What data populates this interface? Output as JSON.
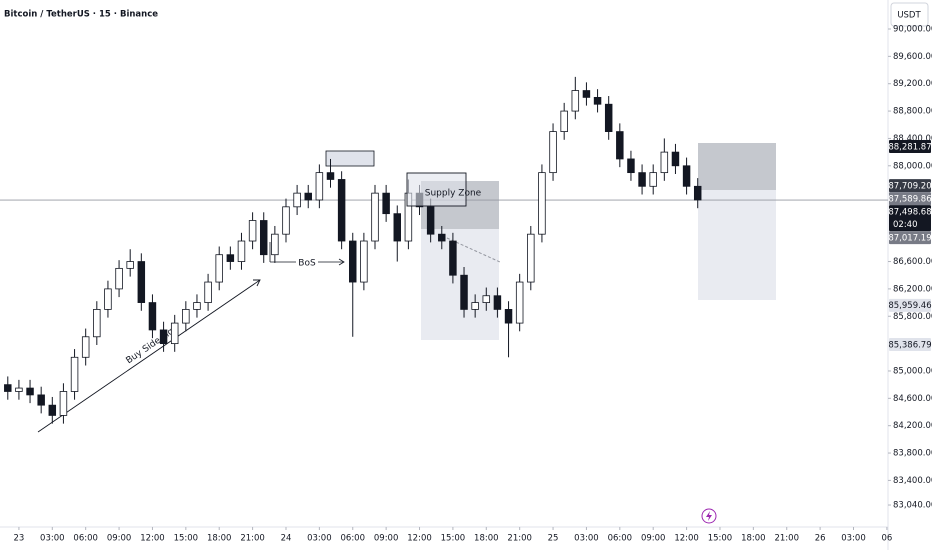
{
  "header": {
    "symbol": "Bitcoin / TetherUS · 15 · Binance",
    "currency": "USDT"
  },
  "chart_data": {
    "type": "candlestick",
    "x": [
      -1,
      0,
      1,
      2,
      3,
      4,
      5,
      6,
      7,
      8,
      9,
      10,
      11,
      12,
      13,
      14,
      15,
      16,
      17,
      18,
      19,
      20,
      21,
      22,
      23,
      24,
      25,
      26,
      27,
      28,
      29,
      30,
      31,
      32,
      33,
      34,
      35,
      36,
      37,
      38,
      39,
      40,
      41,
      42,
      43,
      44,
      45,
      46,
      47,
      48,
      49,
      50,
      51,
      52,
      53,
      54,
      55,
      56,
      57,
      58,
      59,
      60,
      61
    ],
    "open": [
      84800,
      84700,
      84750,
      84650,
      84500,
      84350,
      84700,
      85200,
      85500,
      85900,
      86200,
      86500,
      86600,
      86000,
      85600,
      85400,
      85700,
      85900,
      86000,
      86300,
      86700,
      86600,
      86900,
      87200,
      86700,
      87000,
      87400,
      87600,
      87500,
      87900,
      87800,
      86900,
      86300,
      86900,
      87600,
      87300,
      86900,
      87600,
      87400,
      87000,
      86900,
      86400,
      85900,
      86000,
      86100,
      85900,
      85700,
      86300,
      87000,
      87900,
      88500,
      88800,
      89100,
      89000,
      88900,
      88500,
      88100,
      87900,
      87700,
      87900,
      88200,
      88000,
      87700
    ],
    "high": [
      84920,
      84870,
      84870,
      84770,
      84620,
      84820,
      85320,
      85620,
      86020,
      86320,
      86620,
      86780,
      86720,
      86120,
      85720,
      85820,
      86020,
      86120,
      86420,
      86820,
      86820,
      87020,
      87320,
      87320,
      87120,
      87520,
      87720,
      87720,
      88020,
      88100,
      87920,
      87020,
      87020,
      87720,
      87720,
      87420,
      87800,
      87720,
      87520,
      87120,
      87020,
      86520,
      86120,
      86220,
      86220,
      86020,
      86420,
      87120,
      88020,
      88620,
      88920,
      89300,
      89220,
      89120,
      89020,
      88620,
      88220,
      88020,
      88020,
      88400,
      88320,
      88120,
      87820
    ],
    "low": [
      84580,
      84580,
      84530,
      84380,
      84230,
      84230,
      84580,
      85080,
      85380,
      85780,
      86080,
      86380,
      85880,
      85480,
      85280,
      85280,
      85580,
      85780,
      85880,
      86180,
      86480,
      86480,
      86780,
      86580,
      86580,
      86880,
      87280,
      87380,
      87380,
      87680,
      86780,
      85500,
      86180,
      86780,
      87180,
      86600,
      86780,
      87280,
      86880,
      86780,
      86280,
      85780,
      85780,
      85880,
      85780,
      85200,
      85580,
      86180,
      86880,
      87780,
      88380,
      88680,
      88880,
      88780,
      88380,
      87980,
      87780,
      87580,
      87580,
      87780,
      87880,
      87580,
      87380
    ],
    "close": [
      84700,
      84750,
      84650,
      84500,
      84350,
      84700,
      85200,
      85500,
      85900,
      86200,
      86500,
      86600,
      86000,
      85600,
      85400,
      85700,
      85900,
      86000,
      86300,
      86700,
      86600,
      86900,
      87200,
      86700,
      87000,
      87400,
      87600,
      87500,
      87900,
      87800,
      86900,
      86300,
      86900,
      87600,
      87300,
      86900,
      87600,
      87400,
      87000,
      86900,
      86400,
      85900,
      86000,
      86100,
      85900,
      85700,
      86300,
      87000,
      87900,
      88500,
      88800,
      89100,
      89000,
      88900,
      88500,
      88100,
      87900,
      87700,
      87900,
      88200,
      88000,
      87700,
      87500
    ],
    "up_color": "#ffffff",
    "down_color": "#131722",
    "wick_color": "#131722",
    "xlim": [
      -1.7,
      78.1
    ],
    "xticks": [
      {
        "value": 0,
        "label": "23"
      },
      {
        "value": 3,
        "label": "03:00"
      },
      {
        "value": 6,
        "label": "06:00"
      },
      {
        "value": 9,
        "label": "09:00"
      },
      {
        "value": 12,
        "label": "12:00"
      },
      {
        "value": 15,
        "label": "15:00"
      },
      {
        "value": 18,
        "label": "18:00"
      },
      {
        "value": 21,
        "label": "21:00"
      },
      {
        "value": 24,
        "label": "24"
      },
      {
        "value": 27,
        "label": "03:00"
      },
      {
        "value": 30,
        "label": "06:00"
      },
      {
        "value": 33,
        "label": "09:00"
      },
      {
        "value": 36,
        "label": "12:00"
      },
      {
        "value": 39,
        "label": "15:00"
      },
      {
        "value": 42,
        "label": "18:00"
      },
      {
        "value": 45,
        "label": "21:00"
      },
      {
        "value": 48,
        "label": "25"
      },
      {
        "value": 51,
        "label": "03:00"
      },
      {
        "value": 54,
        "label": "06:00"
      },
      {
        "value": 57,
        "label": "09:00"
      },
      {
        "value": 60,
        "label": "12:00"
      },
      {
        "value": 63,
        "label": "15:00"
      },
      {
        "value": 66,
        "label": "18:00"
      },
      {
        "value": 69,
        "label": "21:00"
      },
      {
        "value": 72,
        "label": "26"
      },
      {
        "value": 75,
        "label": "03:00"
      },
      {
        "value": 78,
        "label": "06"
      }
    ],
    "ylim": [
      82821,
      90424
    ],
    "yticks": [
      {
        "value": 90000,
        "label": "90,000.00"
      },
      {
        "value": 89600,
        "label": "89,600.00"
      },
      {
        "value": 89200,
        "label": "89,200.00"
      },
      {
        "value": 88800,
        "label": "88,800.00"
      },
      {
        "value": 88400,
        "label": "88,400.00"
      },
      {
        "value": 88000,
        "label": "88,000.00"
      },
      {
        "value": 86600,
        "label": "86,600.00"
      },
      {
        "value": 86200,
        "label": "86,200.00"
      },
      {
        "value": 85800,
        "label": "85,800.00"
      },
      {
        "value": 85000,
        "label": "85,000.00"
      },
      {
        "value": 84600,
        "label": "84,600.00"
      },
      {
        "value": 84200,
        "label": "84,200.00"
      },
      {
        "value": 83800,
        "label": "83,800.00"
      },
      {
        "value": 83400,
        "label": "83,400.00"
      },
      {
        "value": 83040,
        "label": "83,040.00"
      }
    ],
    "price_badges": [
      {
        "value": 88281.87,
        "label": "88,281.87",
        "color": "#131722",
        "text_color": "#ffffff"
      },
      {
        "value": 87709.2,
        "label": "87,709.20",
        "color": "#363a45",
        "text_color": "#ffffff"
      },
      {
        "value": 87589.86,
        "label": "87,589.86",
        "color": "#787b86",
        "text_color": "#ffffff"
      },
      {
        "value": 87498.68,
        "label": "87,498.68",
        "sublabel": "02:40",
        "color": "#131722",
        "text_color": "#ffffff"
      },
      {
        "value": 87017.19,
        "label": "87,017.19",
        "color": "#787b86",
        "text_color": "#ffffff"
      },
      {
        "value": 85959.46,
        "label": "85,959.46",
        "color": "#e0e3eb",
        "text_color": "#131722"
      },
      {
        "value": 85386.79,
        "label": "85,386.79",
        "color": "#e0e3eb",
        "text_color": "#131722"
      }
    ],
    "annotations": {
      "supply": "Supply Zone",
      "bos": "BoS",
      "liq": "Buy Side Liq"
    }
  }
}
